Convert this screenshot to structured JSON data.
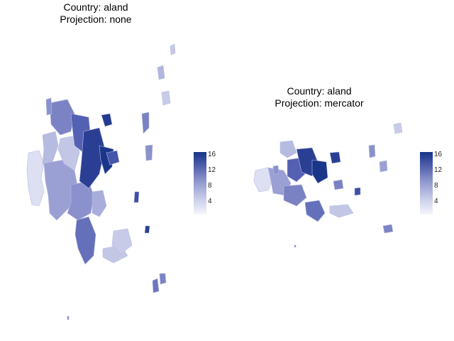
{
  "panels": [
    {
      "title_line1": "Country: aland",
      "title_line2": "Projection: none",
      "legend_ticks": [
        "16",
        "12",
        "8",
        "4"
      ]
    },
    {
      "title_line1": "Country: aland",
      "title_line2": "Projection: mercator",
      "legend_ticks": [
        "16",
        "12",
        "8",
        "4"
      ]
    }
  ],
  "colors": {
    "low": "#f0f1fa",
    "mid": "#8b93cb",
    "high": "#163487",
    "border": "#a9aed6"
  },
  "legend": {
    "min": 1,
    "max": 17
  }
}
